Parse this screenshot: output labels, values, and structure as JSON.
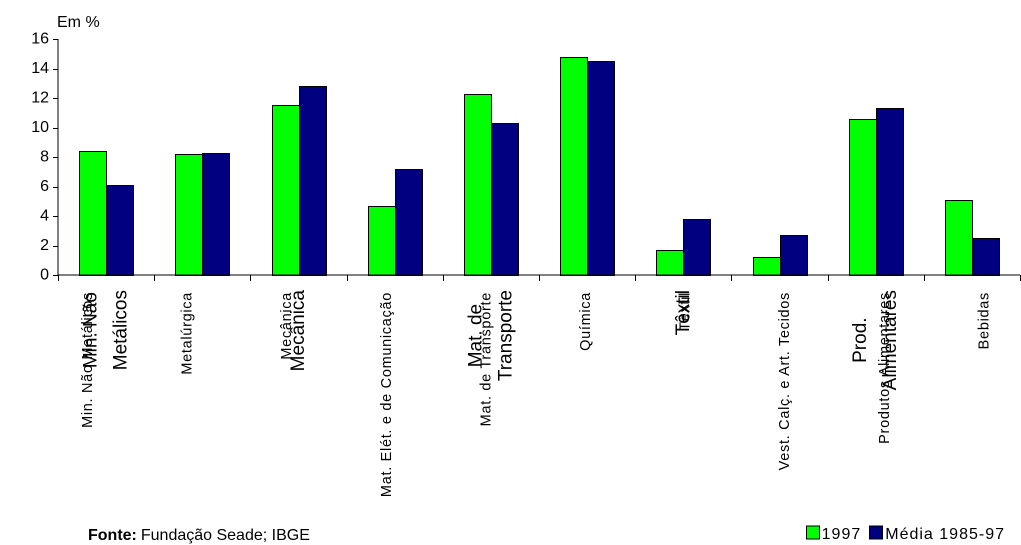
{
  "chart_data": {
    "type": "bar",
    "ylabel": "Em %",
    "xlabel": "",
    "ylim": [
      0,
      16
    ],
    "yticks": [
      0,
      2,
      4,
      6,
      8,
      10,
      12,
      14,
      16
    ],
    "grid": false,
    "legend_position": "bottom-right",
    "categories": [
      "Min. Não Metálicos",
      "Metalúrgica",
      "Mecânica",
      "Mat. Elét. e de Comunicação",
      "Mat. de Transporte",
      "Química",
      "Têxtil",
      "Vest. Calç. e Art. Tecidos",
      "Produtos Alimentares",
      "Bebidas"
    ],
    "category_overlay_labels": [
      [
        "Min. Não",
        "Metálicos"
      ],
      [],
      [
        "Mecânica"
      ],
      [],
      [
        "Mat. de",
        "Transporte"
      ],
      [],
      [
        "Têxtil"
      ],
      [],
      [
        "Prod.",
        "Alimentares"
      ],
      []
    ],
    "series": [
      {
        "name": "1997",
        "color": "#00FF00",
        "values": [
          8.4,
          8.2,
          11.5,
          4.7,
          12.3,
          14.8,
          1.7,
          1.2,
          10.6,
          5.1
        ]
      },
      {
        "name": "Média 1985-97",
        "color": "#000080",
        "values": [
          6.1,
          8.3,
          12.8,
          7.2,
          10.3,
          14.5,
          3.8,
          2.7,
          11.3,
          2.5
        ]
      }
    ]
  },
  "footer": {
    "source_label": "Fonte:",
    "source_text": "Fundação Seade; IBGE"
  }
}
